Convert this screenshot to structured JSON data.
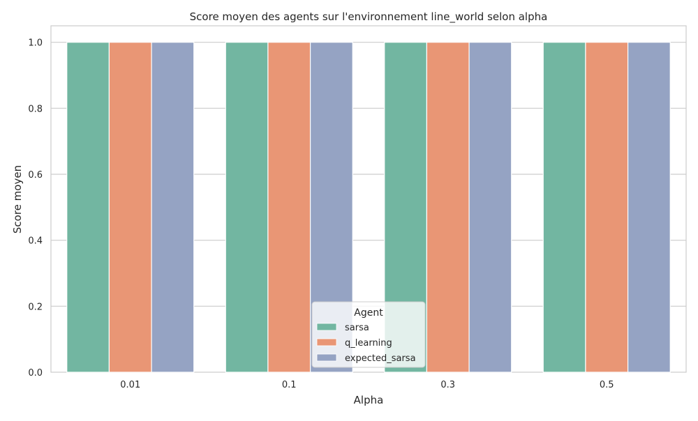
{
  "chart_data": {
    "type": "bar",
    "title": "Score moyen des agents sur l'environnement line_world selon alpha",
    "xlabel": "Alpha",
    "ylabel": "Score moyen",
    "categories": [
      "0.01",
      "0.1",
      "0.3",
      "0.5"
    ],
    "ylim": [
      0,
      1.05
    ],
    "yticks": [
      "0.0",
      "0.2",
      "0.4",
      "0.6",
      "0.8",
      "1.0"
    ],
    "grid": true,
    "legend": {
      "title": "Agent",
      "placement": "lower center"
    },
    "series": [
      {
        "name": "sarsa",
        "color": "#72b6a1",
        "values": [
          1.0,
          1.0,
          1.0,
          1.0
        ]
      },
      {
        "name": "q_learning",
        "color": "#e99675",
        "values": [
          1.0,
          1.0,
          1.0,
          1.0
        ]
      },
      {
        "name": "expected_sarsa",
        "color": "#95a3c3",
        "values": [
          1.0,
          1.0,
          1.0,
          1.0
        ]
      }
    ]
  }
}
